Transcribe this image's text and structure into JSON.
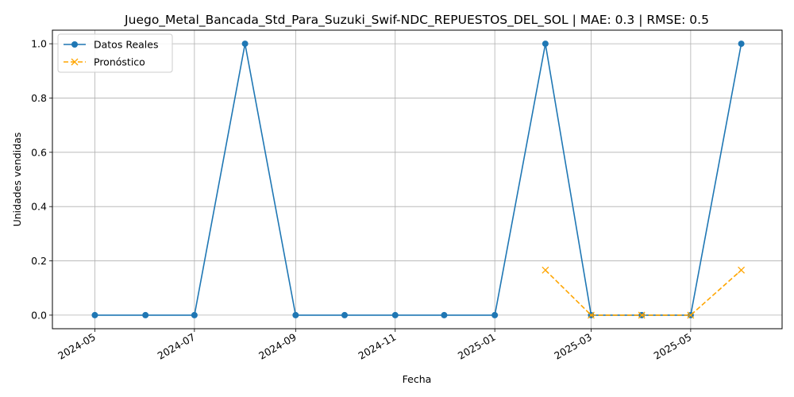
{
  "chart_data": {
    "type": "line",
    "title": "Juego_Metal_Bancada_Std_Para_Suzuki_Swif-NDC_REPUESTOS_DEL_SOL | MAE: 0.3 | RMSE: 0.5",
    "xlabel": "Fecha",
    "ylabel": "Unidades vendidas",
    "xlim": [
      "2024-04-05",
      "2025-06-26"
    ],
    "ylim": [
      -0.05,
      1.05
    ],
    "grid": true,
    "legend_position": "top-left",
    "x_ticks": [
      "2024-05-01",
      "2024-07-01",
      "2024-09-01",
      "2024-11-01",
      "2025-01-01",
      "2025-03-01",
      "2025-05-01"
    ],
    "x_tick_labels": [
      "2024-05",
      "2024-07",
      "2024-09",
      "2024-11",
      "2025-01",
      "2025-03",
      "2025-05"
    ],
    "y_ticks": [
      0.0,
      0.2,
      0.4,
      0.6,
      0.8,
      1.0
    ],
    "y_tick_labels": [
      "0.0",
      "0.2",
      "0.4",
      "0.6",
      "0.8",
      "1.0"
    ],
    "series": [
      {
        "name": "Datos Reales",
        "color": "#1f77b4",
        "marker": "circle",
        "line_style": "solid",
        "x": [
          "2024-05-01",
          "2024-06-01",
          "2024-07-01",
          "2024-08-01",
          "2024-09-01",
          "2024-10-01",
          "2024-11-01",
          "2024-12-01",
          "2025-01-01",
          "2025-02-01",
          "2025-03-01",
          "2025-04-01",
          "2025-05-01",
          "2025-06-01"
        ],
        "values": [
          0,
          0,
          0,
          1,
          0,
          0,
          0,
          0,
          0,
          1,
          0,
          0,
          0,
          1
        ]
      },
      {
        "name": "Pronóstico",
        "color": "#ffa500",
        "marker": "x",
        "line_style": "dashed",
        "x": [
          "2025-02-01",
          "2025-03-01",
          "2025-04-01",
          "2025-05-01",
          "2025-06-01"
        ],
        "values": [
          0.166,
          0,
          0,
          0,
          0.166
        ]
      }
    ]
  }
}
